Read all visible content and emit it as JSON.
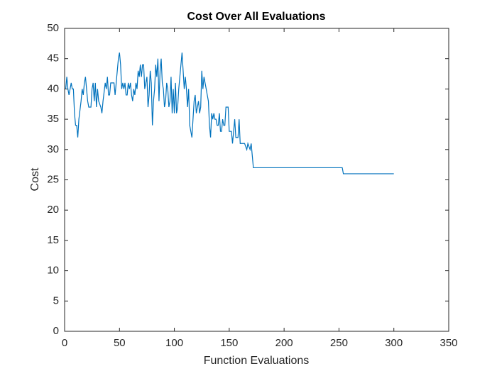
{
  "chart_data": {
    "type": "line",
    "title": "Cost Over All Evaluations",
    "x_label": "Function Evaluations",
    "y_label": "Cost",
    "series": [
      {
        "color": "#0072bd",
        "x": [
          1,
          2,
          3,
          4,
          5,
          6,
          7,
          8,
          9,
          10,
          11,
          12,
          13,
          15,
          16,
          17,
          18,
          19,
          20,
          21,
          22,
          24,
          25,
          26,
          27,
          28,
          29,
          30,
          31,
          33,
          34,
          35,
          37,
          38,
          39,
          40,
          41,
          42,
          45,
          46,
          48,
          49,
          50,
          51,
          52,
          53,
          54,
          55,
          56,
          57,
          58,
          59,
          60,
          61,
          62,
          63,
          64,
          65,
          66,
          67,
          68,
          69,
          70,
          71,
          72,
          73,
          74,
          75,
          76,
          77,
          78,
          79,
          80,
          81,
          82,
          83,
          84,
          85,
          86,
          87,
          88,
          89,
          90,
          91,
          92,
          93,
          94,
          95,
          96,
          97,
          98,
          99,
          100,
          101,
          102,
          103,
          104,
          105,
          106,
          107,
          108,
          109,
          110,
          111,
          112,
          113,
          114,
          115,
          116,
          117,
          118,
          119,
          120,
          121,
          122,
          123,
          124,
          125,
          126,
          127,
          128,
          129,
          130,
          131,
          132,
          133,
          134,
          135,
          136,
          137,
          138,
          139,
          140,
          141,
          142,
          143,
          144,
          145,
          146,
          147,
          149,
          150,
          151,
          152,
          153,
          155,
          156,
          158,
          159,
          160,
          164,
          166,
          167,
          169,
          170,
          172,
          253,
          254,
          300
        ],
        "values": [
          40,
          42,
          40,
          39,
          40,
          41,
          40,
          40,
          36,
          34,
          34,
          32,
          35,
          38,
          40,
          39,
          41,
          42,
          40,
          38,
          37,
          37,
          40,
          41,
          38,
          41,
          37,
          40,
          38,
          37,
          36,
          38,
          41,
          40,
          42,
          39,
          39,
          41,
          41,
          39,
          43,
          45,
          46,
          44,
          40,
          41,
          40,
          41,
          39,
          39,
          41,
          40,
          41,
          39,
          38,
          40,
          39,
          41,
          40,
          43,
          42,
          44,
          42,
          44,
          44,
          40,
          41,
          42,
          37,
          39,
          43,
          41,
          34,
          38,
          40,
          44,
          42,
          45,
          38,
          43,
          45,
          41,
          40,
          37,
          38,
          41,
          40,
          37,
          38,
          42,
          36,
          40,
          36,
          41,
          36,
          37,
          40,
          42,
          44,
          46,
          43,
          40,
          42,
          40,
          37,
          40,
          34,
          33,
          32,
          35,
          38,
          39,
          36,
          37,
          38,
          36,
          37,
          43,
          40,
          42,
          41,
          40,
          39,
          38,
          34,
          32,
          36,
          35,
          36,
          35,
          35,
          34,
          34,
          36,
          33,
          33,
          35,
          34,
          34,
          37,
          37,
          33,
          33,
          33,
          31,
          35,
          32,
          32,
          35,
          31,
          31,
          30,
          31,
          30,
          31,
          27,
          27,
          26,
          26
        ]
      }
    ],
    "xlim": [
      0,
      350
    ],
    "xticks": [
      0,
      50,
      100,
      150,
      200,
      250,
      300,
      350
    ],
    "ylim": [
      0,
      50
    ],
    "yticks": [
      0,
      5,
      10,
      15,
      20,
      25,
      30,
      35,
      40,
      45,
      50
    ]
  }
}
